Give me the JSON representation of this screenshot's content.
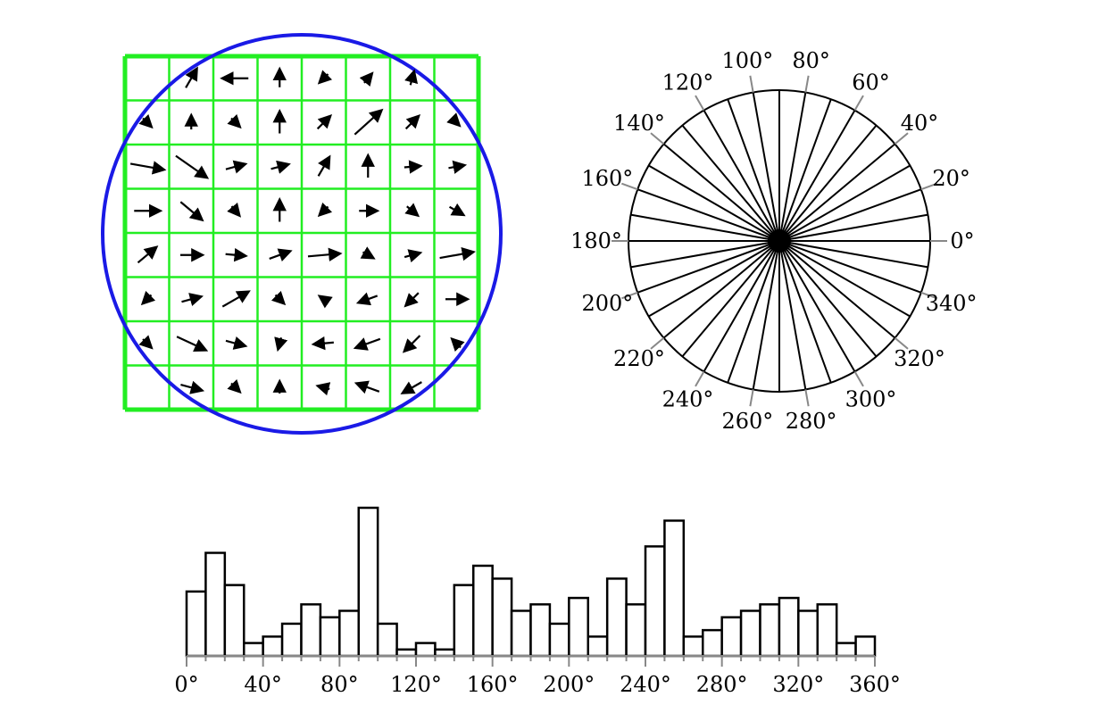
{
  "panels": {
    "gradient_field": {
      "grid_size": [
        8,
        8
      ],
      "grid_color": "#22ee22",
      "circle_color": "#1a1ae6",
      "arrow_color": "#000000",
      "vectors": [
        {
          "row": 0,
          "col": 1,
          "angle": 60,
          "mag": 0.55
        },
        {
          "row": 0,
          "col": 2,
          "angle": 180,
          "mag": 0.65
        },
        {
          "row": 0,
          "col": 3,
          "angle": 90,
          "mag": 0.45
        },
        {
          "row": 0,
          "col": 4,
          "angle": 225,
          "mag": 0.3
        },
        {
          "row": 0,
          "col": 5,
          "angle": 50,
          "mag": 0.3
        },
        {
          "row": 0,
          "col": 6,
          "angle": 75,
          "mag": 0.35
        },
        {
          "row": 1,
          "col": 0,
          "angle": 315,
          "mag": 0.3
        },
        {
          "row": 1,
          "col": 1,
          "angle": 90,
          "mag": 0.35
        },
        {
          "row": 1,
          "col": 2,
          "angle": 315,
          "mag": 0.3
        },
        {
          "row": 1,
          "col": 3,
          "angle": 90,
          "mag": 0.55
        },
        {
          "row": 1,
          "col": 4,
          "angle": 45,
          "mag": 0.45
        },
        {
          "row": 1,
          "col": 5,
          "angle": 42,
          "mag": 0.9
        },
        {
          "row": 1,
          "col": 6,
          "angle": 45,
          "mag": 0.45
        },
        {
          "row": 1,
          "col": 7,
          "angle": 315,
          "mag": 0.2
        },
        {
          "row": 2,
          "col": 0,
          "angle": 350,
          "mag": 0.85
        },
        {
          "row": 2,
          "col": 1,
          "angle": 325,
          "mag": 0.95
        },
        {
          "row": 2,
          "col": 2,
          "angle": 15,
          "mag": 0.5
        },
        {
          "row": 2,
          "col": 3,
          "angle": 15,
          "mag": 0.45
        },
        {
          "row": 2,
          "col": 4,
          "angle": 60,
          "mag": 0.55
        },
        {
          "row": 2,
          "col": 5,
          "angle": 90,
          "mag": 0.55
        },
        {
          "row": 2,
          "col": 6,
          "angle": 5,
          "mag": 0.4
        },
        {
          "row": 2,
          "col": 7,
          "angle": 10,
          "mag": 0.4
        },
        {
          "row": 3,
          "col": 0,
          "angle": 0,
          "mag": 0.65
        },
        {
          "row": 3,
          "col": 1,
          "angle": 320,
          "mag": 0.7
        },
        {
          "row": 3,
          "col": 2,
          "angle": 310,
          "mag": 0.3
        },
        {
          "row": 3,
          "col": 3,
          "angle": 90,
          "mag": 0.55
        },
        {
          "row": 3,
          "col": 4,
          "angle": 225,
          "mag": 0.3
        },
        {
          "row": 3,
          "col": 5,
          "angle": 0,
          "mag": 0.45
        },
        {
          "row": 3,
          "col": 6,
          "angle": 320,
          "mag": 0.35
        },
        {
          "row": 3,
          "col": 7,
          "angle": 330,
          "mag": 0.4
        },
        {
          "row": 4,
          "col": 0,
          "angle": 40,
          "mag": 0.6
        },
        {
          "row": 4,
          "col": 1,
          "angle": 0,
          "mag": 0.55
        },
        {
          "row": 4,
          "col": 2,
          "angle": 355,
          "mag": 0.5
        },
        {
          "row": 4,
          "col": 3,
          "angle": 20,
          "mag": 0.55
        },
        {
          "row": 4,
          "col": 4,
          "angle": 5,
          "mag": 0.8
        },
        {
          "row": 4,
          "col": 5,
          "angle": 330,
          "mag": 0.3
        },
        {
          "row": 4,
          "col": 6,
          "angle": 15,
          "mag": 0.4
        },
        {
          "row": 4,
          "col": 7,
          "angle": 10,
          "mag": 0.85
        },
        {
          "row": 5,
          "col": 0,
          "angle": 225,
          "mag": 0.3
        },
        {
          "row": 5,
          "col": 1,
          "angle": 15,
          "mag": 0.5
        },
        {
          "row": 5,
          "col": 2,
          "angle": 30,
          "mag": 0.75
        },
        {
          "row": 5,
          "col": 3,
          "angle": 315,
          "mag": 0.3
        },
        {
          "row": 5,
          "col": 4,
          "angle": 145,
          "mag": 0.25
        },
        {
          "row": 5,
          "col": 5,
          "angle": 200,
          "mag": 0.5
        },
        {
          "row": 5,
          "col": 6,
          "angle": 225,
          "mag": 0.45
        },
        {
          "row": 5,
          "col": 7,
          "angle": 0,
          "mag": 0.55
        },
        {
          "row": 6,
          "col": 0,
          "angle": 315,
          "mag": 0.3
        },
        {
          "row": 6,
          "col": 1,
          "angle": 335,
          "mag": 0.8
        },
        {
          "row": 6,
          "col": 2,
          "angle": 345,
          "mag": 0.5
        },
        {
          "row": 6,
          "col": 3,
          "angle": 255,
          "mag": 0.3
        },
        {
          "row": 6,
          "col": 4,
          "angle": 185,
          "mag": 0.5
        },
        {
          "row": 6,
          "col": 5,
          "angle": 200,
          "mag": 0.65
        },
        {
          "row": 6,
          "col": 6,
          "angle": 225,
          "mag": 0.55
        },
        {
          "row": 6,
          "col": 7,
          "angle": 135,
          "mag": 0.3
        },
        {
          "row": 7,
          "col": 1,
          "angle": 345,
          "mag": 0.55
        },
        {
          "row": 7,
          "col": 2,
          "angle": 315,
          "mag": 0.3
        },
        {
          "row": 7,
          "col": 3,
          "angle": 90,
          "mag": 0.3
        },
        {
          "row": 7,
          "col": 4,
          "angle": 165,
          "mag": 0.3
        },
        {
          "row": 7,
          "col": 5,
          "angle": 160,
          "mag": 0.6
        },
        {
          "row": 7,
          "col": 6,
          "angle": 210,
          "mag": 0.55
        }
      ]
    },
    "orientation_wheel": {
      "spoke_step_deg": 10,
      "tick_step_deg": 20,
      "labels": [
        "0°",
        "20°",
        "40°",
        "60°",
        "80°",
        "100°",
        "120°",
        "140°",
        "160°",
        "180°",
        "200°",
        "220°",
        "240°",
        "260°",
        "280°",
        "300°",
        "320°",
        "340°"
      ],
      "tick_color": "#888888"
    }
  },
  "chart_data": {
    "type": "bar",
    "x_tick_labels": [
      "0°",
      "40°",
      "80°",
      "120°",
      "160°",
      "200°",
      "240°",
      "280°",
      "320°",
      "360°"
    ],
    "bin_width_deg": 10,
    "bin_starts_deg": [
      0,
      10,
      20,
      30,
      40,
      50,
      60,
      70,
      80,
      90,
      100,
      110,
      120,
      130,
      140,
      150,
      160,
      170,
      180,
      190,
      200,
      210,
      220,
      230,
      240,
      250,
      260,
      270,
      280,
      290,
      300,
      310,
      320,
      330,
      340,
      350
    ],
    "values": [
      10,
      16,
      11,
      2,
      3,
      5,
      8,
      6,
      7,
      23,
      5,
      1,
      2,
      1,
      11,
      14,
      12,
      7,
      8,
      5,
      9,
      3,
      12,
      8,
      17,
      21,
      3,
      4,
      6,
      7,
      8,
      9,
      7,
      8,
      2,
      3
    ],
    "xlim": [
      0,
      360
    ],
    "ylim": [
      0,
      23
    ],
    "title": "",
    "xlabel": "",
    "ylabel": ""
  }
}
